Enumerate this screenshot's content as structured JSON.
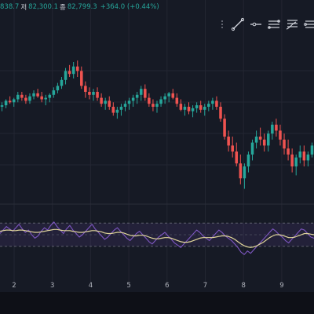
{
  "header": {
    "ohlc_line_partial": "838.7",
    "low_label": "저",
    "low_value": "82,300.1",
    "close_label": "종",
    "close_value": "82,799.3",
    "change": "+364.0 (+0.44%)"
  },
  "drawing_toolbar": {
    "tools": [
      {
        "icon": "trend-line-icon"
      },
      {
        "icon": "horizontal-ray-icon"
      },
      {
        "icon": "parallel-channel-icon"
      },
      {
        "icon": "fib-retracement-icon"
      },
      {
        "icon": "pitchfork-icon"
      }
    ]
  },
  "colors": {
    "background": "#161a25",
    "up": "#26a69a",
    "down": "#ef5350",
    "rsi_line": "#7e57c2",
    "rsi_ma": "#e0d59a",
    "rsi_band": "#7e57c2",
    "grid": "#232632",
    "axis_text": "#b2b5be"
  },
  "chart_data": [
    {
      "type": "candlestick",
      "title": "",
      "x_axis_ticks": [
        "2",
        "3",
        "4",
        "5",
        "6",
        "7",
        "8",
        "9"
      ],
      "ylim": [
        0,
        100
      ],
      "series": [
        {
          "values": [
            [
              60,
              63,
              57,
              61
            ],
            [
              61,
              65,
              59,
              64
            ],
            [
              64,
              67,
              62,
              63
            ],
            [
              63,
              66,
              60,
              65
            ],
            [
              65,
              70,
              63,
              68
            ],
            [
              68,
              70,
              64,
              66
            ],
            [
              66,
              68,
              62,
              64
            ],
            [
              64,
              69,
              62,
              67
            ],
            [
              67,
              71,
              65,
              69
            ],
            [
              69,
              72,
              66,
              67
            ],
            [
              67,
              70,
              63,
              65
            ],
            [
              65,
              68,
              61,
              66
            ],
            [
              66,
              69,
              63,
              68
            ],
            [
              68,
              73,
              66,
              71
            ],
            [
              71,
              76,
              69,
              74
            ],
            [
              74,
              80,
              72,
              78
            ],
            [
              78,
              86,
              75,
              84
            ],
            [
              84,
              88,
              80,
              82
            ],
            [
              82,
              90,
              79,
              87
            ],
            [
              87,
              91,
              80,
              84
            ],
            [
              84,
              87,
              72,
              74
            ],
            [
              74,
              77,
              66,
              70
            ],
            [
              70,
              73,
              65,
              68
            ],
            [
              68,
              72,
              64,
              70
            ],
            [
              70,
              73,
              64,
              66
            ],
            [
              66,
              69,
              60,
              62
            ],
            [
              62,
              66,
              58,
              64
            ],
            [
              64,
              67,
              58,
              60
            ],
            [
              60,
              63,
              54,
              56
            ],
            [
              56,
              60,
              52,
              58
            ],
            [
              58,
              62,
              54,
              60
            ],
            [
              60,
              64,
              57,
              62
            ],
            [
              62,
              66,
              58,
              64
            ],
            [
              64,
              68,
              60,
              66
            ],
            [
              66,
              70,
              62,
              68
            ],
            [
              68,
              74,
              64,
              72
            ],
            [
              72,
              75,
              64,
              66
            ],
            [
              66,
              69,
              60,
              62
            ],
            [
              62,
              65,
              57,
              60
            ],
            [
              60,
              64,
              56,
              62
            ],
            [
              62,
              67,
              60,
              65
            ],
            [
              65,
              69,
              62,
              67
            ],
            [
              67,
              70,
              63,
              69
            ],
            [
              69,
              72,
              65,
              66
            ],
            [
              66,
              69,
              60,
              62
            ],
            [
              62,
              65,
              57,
              58
            ],
            [
              58,
              62,
              54,
              60
            ],
            [
              60,
              63,
              55,
              57
            ],
            [
              57,
              61,
              53,
              59
            ],
            [
              59,
              63,
              56,
              61
            ],
            [
              61,
              64,
              56,
              58
            ],
            [
              58,
              62,
              54,
              60
            ],
            [
              60,
              64,
              57,
              62
            ],
            [
              62,
              66,
              58,
              64
            ],
            [
              64,
              67,
              58,
              60
            ],
            [
              60,
              63,
              50,
              52
            ],
            [
              52,
              55,
              38,
              40
            ],
            [
              40,
              44,
              30,
              34
            ],
            [
              34,
              40,
              26,
              30
            ],
            [
              30,
              36,
              20,
              22
            ],
            [
              22,
              28,
              8,
              12
            ],
            [
              12,
              22,
              5,
              20
            ],
            [
              20,
              30,
              16,
              28
            ],
            [
              28,
              38,
              24,
              36
            ],
            [
              36,
              44,
              32,
              40
            ],
            [
              40,
              46,
              34,
              38
            ],
            [
              38,
              42,
              30,
              34
            ],
            [
              34,
              44,
              30,
              42
            ],
            [
              42,
              50,
              38,
              48
            ],
            [
              48,
              52,
              40,
              44
            ],
            [
              44,
              48,
              34,
              38
            ],
            [
              38,
              42,
              28,
              32
            ],
            [
              32,
              38,
              24,
              28
            ],
            [
              28,
              32,
              16,
              20
            ],
            [
              20,
              28,
              14,
              26
            ],
            [
              26,
              34,
              22,
              30
            ],
            [
              30,
              34,
              20,
              24
            ],
            [
              24,
              30,
              20,
              28
            ],
            [
              28,
              36,
              26,
              34
            ]
          ]
        }
      ]
    },
    {
      "type": "line",
      "title": "",
      "ylim": [
        0,
        100
      ],
      "bands": [
        70,
        50,
        30
      ],
      "series": [
        {
          "values": [
            52,
            58,
            64,
            60,
            56,
            62,
            68,
            60,
            54,
            58,
            50,
            44,
            48,
            56,
            62,
            58,
            66,
            72,
            64,
            58,
            52,
            60,
            66,
            58,
            52,
            46,
            50,
            56,
            62,
            68,
            60,
            54,
            48,
            42,
            46,
            52,
            58,
            62,
            56,
            50,
            44,
            40,
            46,
            52,
            56,
            50,
            44,
            38,
            34,
            40,
            46,
            50,
            54,
            48,
            42,
            36,
            32,
            28,
            34,
            40,
            46,
            52,
            58,
            54,
            48,
            44,
            40,
            46,
            52,
            58,
            54,
            48,
            44,
            40,
            34,
            28,
            20,
            16,
            22,
            18,
            24,
            30,
            36,
            42,
            48,
            54,
            60,
            56,
            50,
            46,
            40,
            36,
            42,
            48,
            54,
            60,
            58,
            52,
            46,
            44
          ]
        },
        {
          "values": [
            56,
            57,
            58,
            58,
            57,
            57,
            58,
            58,
            57,
            56,
            55,
            54,
            54,
            55,
            56,
            57,
            58,
            59,
            59,
            58,
            57,
            57,
            57,
            56,
            55,
            54,
            54,
            55,
            56,
            57,
            57,
            56,
            55,
            53,
            52,
            52,
            53,
            54,
            54,
            53,
            51,
            49,
            48,
            48,
            49,
            49,
            48,
            46,
            44,
            43,
            43,
            44,
            45,
            45,
            44,
            42,
            40,
            38,
            37,
            37,
            38,
            40,
            42,
            44,
            45,
            45,
            45,
            45,
            46,
            47,
            48,
            48,
            47,
            45,
            42,
            38,
            34,
            31,
            29,
            28,
            29,
            31,
            34,
            37,
            41,
            45,
            48,
            50,
            50,
            49,
            47,
            45,
            45,
            46,
            48,
            50,
            52,
            52,
            51,
            50
          ]
        }
      ]
    }
  ]
}
